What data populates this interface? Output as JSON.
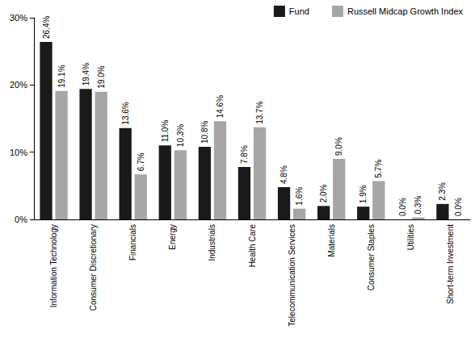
{
  "chart_data": {
    "type": "bar",
    "categories": [
      "Information Technology",
      "Consumer Discretionary",
      "Financials",
      "Energy",
      "Industrials",
      "Health Care",
      "Telecommunication Services",
      "Materials",
      "Consumer Staples",
      "Utilities",
      "Short-term Investment"
    ],
    "series": [
      {
        "name": "Fund",
        "color": "#1a1a1a",
        "values": [
          26.4,
          19.4,
          13.6,
          11.0,
          10.8,
          7.8,
          4.8,
          2.0,
          1.9,
          0.0,
          2.3
        ],
        "value_labels": [
          "26.4%",
          "19.4%",
          "13.6%",
          "11.0%",
          "10.8%",
          "7.8%",
          "4.8%",
          "2.0%",
          "1.9%",
          "0.0%",
          "2.3%"
        ]
      },
      {
        "name": "Russell Midcap Growth Index",
        "color": "#a6a6a6",
        "values": [
          19.1,
          19.0,
          6.7,
          10.3,
          14.6,
          13.7,
          1.6,
          9.0,
          5.7,
          0.3,
          0.0
        ],
        "value_labels": [
          "19.1%",
          "19.0%",
          "6.7%",
          "10.3%",
          "14.6%",
          "13.7%",
          "1.6%",
          "9.0%",
          "5.7%",
          "0.3%",
          "0.0%"
        ]
      }
    ],
    "ylim": [
      0,
      30
    ],
    "yticks": [
      {
        "value": 0,
        "label": "0%"
      },
      {
        "value": 10,
        "label": "10%"
      },
      {
        "value": 20,
        "label": "20%"
      },
      {
        "value": 30,
        "label": "30%"
      }
    ],
    "grid": false,
    "legend": "top-right",
    "data_labels": true
  }
}
